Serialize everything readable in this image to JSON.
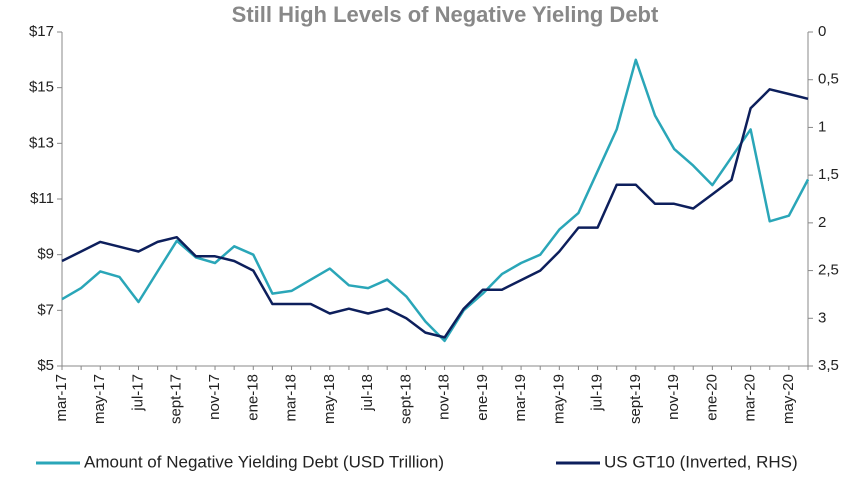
{
  "chart_data": {
    "type": "line",
    "title": "Still High Levels of Negative Yieling Debt",
    "categories": [
      "mar-17",
      null,
      "may-17",
      null,
      "jul-17",
      null,
      "sept-17",
      null,
      "nov-17",
      null,
      "ene-18",
      null,
      "mar-18",
      null,
      "may-18",
      null,
      "jul-18",
      null,
      "sept-18",
      null,
      "nov-18",
      null,
      "ene-19",
      null,
      "mar-19",
      null,
      "may-19",
      null,
      "jul-19",
      null,
      "sept-19",
      null,
      "nov-19",
      null,
      "ene-20",
      null,
      "mar-20",
      null,
      "may-20",
      null
    ],
    "series": [
      {
        "name": "Amount of Negative Yielding Debt (USD Trillion)",
        "color": "#2aa6b8",
        "values": [
          7.4,
          7.8,
          8.4,
          8.2,
          7.3,
          8.4,
          9.5,
          8.9,
          8.7,
          9.3,
          9.0,
          7.6,
          7.7,
          8.1,
          8.5,
          7.9,
          7.8,
          8.1,
          7.5,
          6.6,
          5.9,
          7.0,
          7.6,
          8.3,
          8.7,
          9.0,
          9.9,
          10.5,
          12.0,
          13.5,
          16.0,
          14.0,
          12.8,
          12.2,
          11.5,
          12.5,
          13.5,
          10.2,
          10.4,
          11.7
        ]
      },
      {
        "name": "US GT10 (Inverted, RHS)",
        "color": "#0d1f5c",
        "axis": "y2",
        "values": [
          2.4,
          2.3,
          2.2,
          2.25,
          2.3,
          2.2,
          2.15,
          2.35,
          2.35,
          2.4,
          2.5,
          2.85,
          2.85,
          2.85,
          2.95,
          2.9,
          2.95,
          2.9,
          3.0,
          3.15,
          3.2,
          2.9,
          2.7,
          2.7,
          2.6,
          2.5,
          2.3,
          2.05,
          2.05,
          1.6,
          1.6,
          1.8,
          1.8,
          1.85,
          1.7,
          1.55,
          0.8,
          0.6,
          0.65,
          0.7
        ]
      }
    ],
    "ylim": [
      5,
      17
    ],
    "yticks": [
      {
        "value": 5,
        "label": "$5"
      },
      {
        "value": 7,
        "label": "$7"
      },
      {
        "value": 9,
        "label": "$9"
      },
      {
        "value": 11,
        "label": "$11"
      },
      {
        "value": 13,
        "label": "$13"
      },
      {
        "value": 15,
        "label": "$15"
      },
      {
        "value": 17,
        "label": "$17"
      }
    ],
    "y2lim": [
      3.5,
      0
    ],
    "y2ticks": [
      0,
      {
        "value": 0.5,
        "label": "0,5"
      },
      1,
      {
        "value": 1.5,
        "label": "1,5"
      },
      2,
      {
        "value": 2.5,
        "label": "2,5"
      },
      3,
      {
        "value": 3.5,
        "label": "3,5"
      }
    ],
    "grid": false,
    "legend": "bottom"
  }
}
